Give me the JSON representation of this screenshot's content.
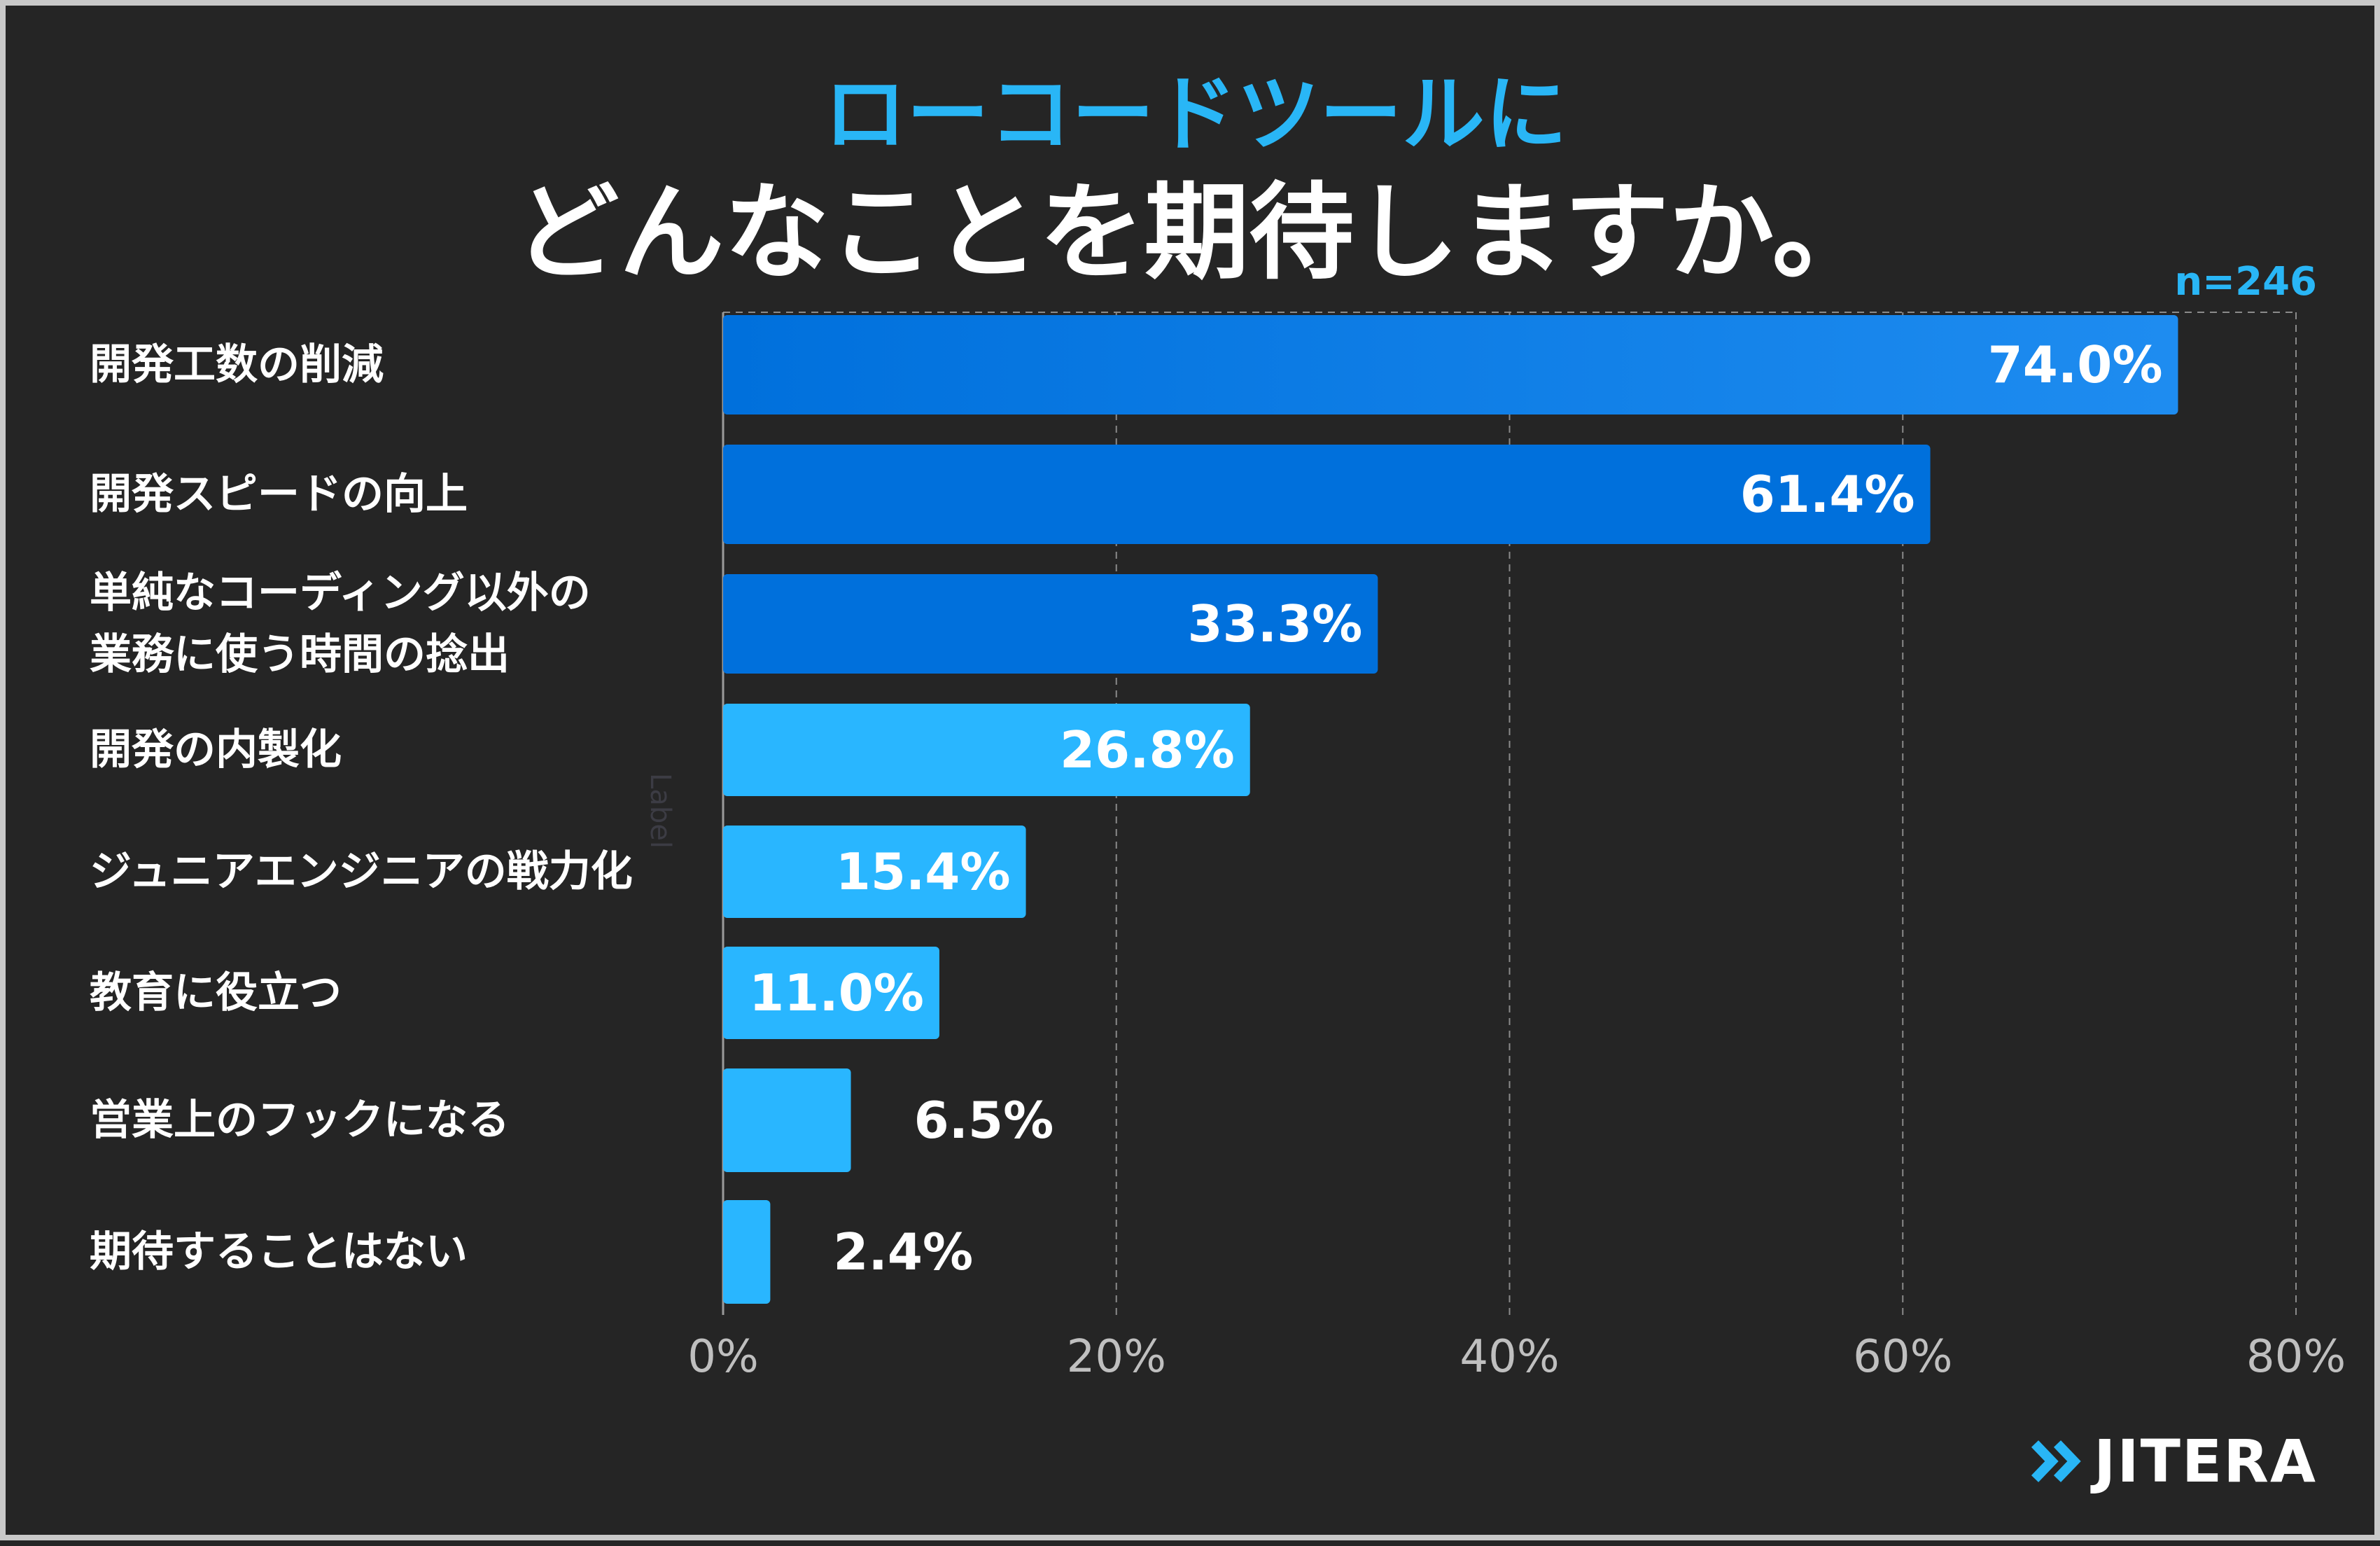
{
  "title": {
    "line1": "ローコードツールに",
    "line2": "どんなことを期待しますか。"
  },
  "sample_size": "n=246",
  "axis_hidden_label": "Label",
  "brand": {
    "name": "JITERA",
    "icon": "double-chevron-right-icon"
  },
  "colors": {
    "background": "#252525",
    "accent": "#29b6f6",
    "bar_dark": "#0070dc",
    "bar_gradient_end": "#1e8cf0",
    "bar_light": "#29b6ff",
    "grid": "#8a8a8a"
  },
  "chart_data": {
    "type": "bar",
    "orientation": "horizontal",
    "title": "ローコードツールにどんなことを期待しますか。",
    "categories": [
      "開発工数の削減",
      "開発スピードの向上",
      "単純なコーディング以外の\n業務に使う時間の捻出",
      "開発の内製化",
      "ジュニアエンジニアの戦力化",
      "教育に役立つ",
      "営業上のフックになる",
      "期待することはない"
    ],
    "values": [
      74.0,
      61.4,
      33.3,
      26.8,
      15.4,
      11.0,
      6.5,
      2.4
    ],
    "value_labels": [
      "74.0%",
      "61.4%",
      "33.3%",
      "26.8%",
      "15.4%",
      "11.0%",
      "6.5%",
      "2.4%"
    ],
    "xlim": [
      0,
      80
    ],
    "xticks": [
      0,
      20,
      40,
      60,
      80
    ],
    "xtick_labels": [
      "0%",
      "20%",
      "40%",
      "60%",
      "80%"
    ],
    "grid": "vertical-dashed",
    "xlabel": "",
    "ylabel": ""
  }
}
